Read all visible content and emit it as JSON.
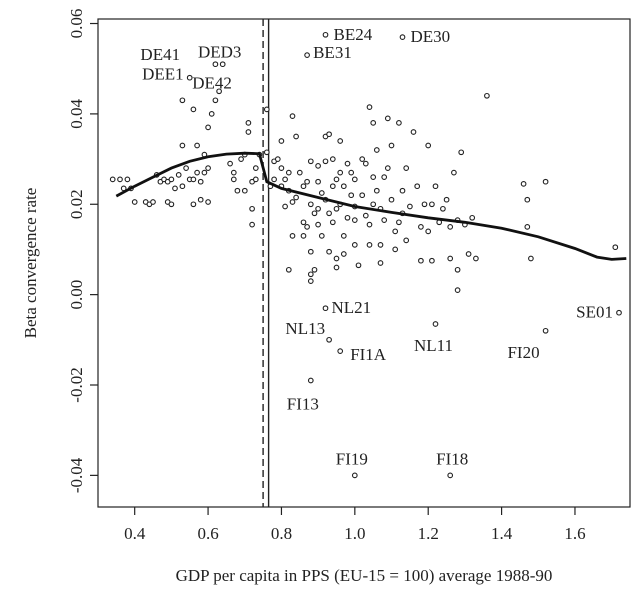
{
  "chart_data": {
    "type": "scatter",
    "xlabel": "GDP per capita in PPS (EU-15 = 100) average 1988-90",
    "ylabel": "Beta convergence rate",
    "xlim": [
      0.3,
      1.75
    ],
    "ylim": [
      -0.047,
      0.061
    ],
    "x_ticks": [
      0.4,
      0.6,
      0.8,
      1.0,
      1.2,
      1.4,
      1.6
    ],
    "x_tick_labels": [
      "0.4",
      "0.6",
      "0.8",
      "1.0",
      "1.2",
      "1.4",
      "1.6"
    ],
    "y_ticks": [
      -0.04,
      -0.02,
      0.0,
      0.02,
      0.04,
      0.06
    ],
    "y_tick_labels": [
      "-0.04",
      "-0.02",
      "0.00",
      "0.02",
      "0.04",
      "0.06"
    ],
    "grid": false,
    "vertical_lines": [
      {
        "x": 0.75,
        "style": "dashed"
      },
      {
        "x": 0.765,
        "style": "solid"
      }
    ],
    "smooth_curve": [
      [
        0.35,
        0.0218
      ],
      [
        0.4,
        0.024
      ],
      [
        0.45,
        0.026
      ],
      [
        0.5,
        0.028
      ],
      [
        0.55,
        0.0295
      ],
      [
        0.6,
        0.0305
      ],
      [
        0.65,
        0.0311
      ],
      [
        0.7,
        0.0313
      ],
      [
        0.74,
        0.0312
      ],
      [
        0.76,
        0.025
      ],
      [
        0.8,
        0.0235
      ],
      [
        0.9,
        0.0215
      ],
      [
        1.0,
        0.0195
      ],
      [
        1.1,
        0.0182
      ],
      [
        1.2,
        0.017
      ],
      [
        1.3,
        0.016
      ],
      [
        1.4,
        0.0147
      ],
      [
        1.5,
        0.0128
      ],
      [
        1.6,
        0.0102
      ],
      [
        1.66,
        0.0083
      ],
      [
        1.7,
        0.0078
      ],
      [
        1.74,
        0.008
      ]
    ],
    "labeled_points": [
      {
        "label": "BE24",
        "x": 0.92,
        "y": 0.0575
      },
      {
        "label": "DE30",
        "x": 1.13,
        "y": 0.057
      },
      {
        "label": "BE31",
        "x": 0.87,
        "y": 0.053
      },
      {
        "label": "DED3",
        "x": 0.64,
        "y": 0.0505
      },
      {
        "label": "DE41",
        "x": 0.54,
        "y": 0.051
      },
      {
        "label": "DEE1",
        "x": 0.55,
        "y": 0.048
      },
      {
        "label": "DE42",
        "x": 0.63,
        "y": 0.05
      },
      {
        "label": "NL21",
        "x": 0.92,
        "y": -0.003
      },
      {
        "label": "NL13",
        "x": 0.93,
        "y": -0.01
      },
      {
        "label": "FI1A",
        "x": 0.96,
        "y": -0.0125
      },
      {
        "label": "NL11",
        "x": 1.22,
        "y": -0.0065
      },
      {
        "label": "SE01",
        "x": 1.72,
        "y": -0.004
      },
      {
        "label": "FI20",
        "x": 1.52,
        "y": -0.008
      },
      {
        "label": "FI13",
        "x": 0.88,
        "y": -0.019
      },
      {
        "label": "FI19",
        "x": 1.0,
        "y": -0.04
      },
      {
        "label": "FI18",
        "x": 1.26,
        "y": -0.04
      }
    ],
    "points": [
      [
        0.34,
        0.0255
      ],
      [
        0.36,
        0.0255
      ],
      [
        0.38,
        0.0255
      ],
      [
        0.37,
        0.0235
      ],
      [
        0.39,
        0.0235
      ],
      [
        0.4,
        0.0205
      ],
      [
        0.43,
        0.0205
      ],
      [
        0.44,
        0.02
      ],
      [
        0.45,
        0.0205
      ],
      [
        0.46,
        0.0265
      ],
      [
        0.47,
        0.025
      ],
      [
        0.48,
        0.0255
      ],
      [
        0.49,
        0.025
      ],
      [
        0.5,
        0.0255
      ],
      [
        0.49,
        0.0205
      ],
      [
        0.5,
        0.02
      ],
      [
        0.51,
        0.0235
      ],
      [
        0.52,
        0.0265
      ],
      [
        0.53,
        0.024
      ],
      [
        0.53,
        0.033
      ],
      [
        0.54,
        0.028
      ],
      [
        0.55,
        0.0255
      ],
      [
        0.56,
        0.0255
      ],
      [
        0.56,
        0.02
      ],
      [
        0.57,
        0.027
      ],
      [
        0.57,
        0.033
      ],
      [
        0.58,
        0.021
      ],
      [
        0.58,
        0.025
      ],
      [
        0.59,
        0.027
      ],
      [
        0.59,
        0.031
      ],
      [
        0.6,
        0.028
      ],
      [
        0.6,
        0.0205
      ],
      [
        0.6,
        0.037
      ],
      [
        0.61,
        0.04
      ],
      [
        0.62,
        0.043
      ],
      [
        0.63,
        0.045
      ],
      [
        0.64,
        0.051
      ],
      [
        0.53,
        0.043
      ],
      [
        0.56,
        0.041
      ],
      [
        0.66,
        0.029
      ],
      [
        0.67,
        0.0255
      ],
      [
        0.67,
        0.027
      ],
      [
        0.68,
        0.023
      ],
      [
        0.69,
        0.03
      ],
      [
        0.7,
        0.031
      ],
      [
        0.7,
        0.023
      ],
      [
        0.71,
        0.038
      ],
      [
        0.71,
        0.036
      ],
      [
        0.72,
        0.025
      ],
      [
        0.72,
        0.019
      ],
      [
        0.72,
        0.0155
      ],
      [
        0.73,
        0.028
      ],
      [
        0.73,
        0.0255
      ],
      [
        0.74,
        0.031
      ],
      [
        0.76,
        0.0315
      ],
      [
        0.76,
        0.041
      ],
      [
        0.77,
        0.024
      ],
      [
        0.78,
        0.0255
      ],
      [
        0.78,
        0.0295
      ],
      [
        0.79,
        0.03
      ],
      [
        0.8,
        0.028
      ],
      [
        0.8,
        0.024
      ],
      [
        0.8,
        0.034
      ],
      [
        0.81,
        0.0255
      ],
      [
        0.81,
        0.0195
      ],
      [
        0.82,
        0.027
      ],
      [
        0.82,
        0.023
      ],
      [
        0.83,
        0.0205
      ],
      [
        0.83,
        0.013
      ],
      [
        0.82,
        0.0055
      ],
      [
        0.83,
        0.0395
      ],
      [
        0.84,
        0.035
      ],
      [
        0.84,
        0.0215
      ],
      [
        0.85,
        0.027
      ],
      [
        0.86,
        0.024
      ],
      [
        0.86,
        0.016
      ],
      [
        0.86,
        0.013
      ],
      [
        0.87,
        0.015
      ],
      [
        0.87,
        0.025
      ],
      [
        0.88,
        0.0295
      ],
      [
        0.88,
        0.02
      ],
      [
        0.88,
        0.0095
      ],
      [
        0.88,
        0.003
      ],
      [
        0.88,
        0.0045
      ],
      [
        0.89,
        0.0055
      ],
      [
        0.89,
        0.018
      ],
      [
        0.9,
        0.025
      ],
      [
        0.9,
        0.0285
      ],
      [
        0.9,
        0.019
      ],
      [
        0.9,
        0.0155
      ],
      [
        0.91,
        0.013
      ],
      [
        0.91,
        0.0225
      ],
      [
        0.92,
        0.035
      ],
      [
        0.92,
        0.0295
      ],
      [
        0.92,
        0.021
      ],
      [
        0.93,
        0.0355
      ],
      [
        0.93,
        0.018
      ],
      [
        0.93,
        0.0095
      ],
      [
        0.94,
        0.03
      ],
      [
        0.94,
        0.024
      ],
      [
        0.94,
        0.016
      ],
      [
        0.95,
        0.0255
      ],
      [
        0.95,
        0.019
      ],
      [
        0.95,
        0.008
      ],
      [
        0.95,
        0.006
      ],
      [
        0.96,
        0.034
      ],
      [
        0.96,
        0.027
      ],
      [
        0.96,
        0.02
      ],
      [
        0.97,
        0.024
      ],
      [
        0.97,
        0.013
      ],
      [
        0.97,
        0.009
      ],
      [
        0.98,
        0.029
      ],
      [
        0.98,
        0.017
      ],
      [
        0.99,
        0.022
      ],
      [
        0.99,
        0.027
      ],
      [
        1.0,
        0.0255
      ],
      [
        1.0,
        0.0195
      ],
      [
        1.0,
        0.0165
      ],
      [
        1.0,
        0.011
      ],
      [
        1.01,
        0.0065
      ],
      [
        1.02,
        0.03
      ],
      [
        1.02,
        0.022
      ],
      [
        1.03,
        0.029
      ],
      [
        1.03,
        0.0175
      ],
      [
        1.04,
        0.0155
      ],
      [
        1.04,
        0.011
      ],
      [
        1.04,
        0.0415
      ],
      [
        1.05,
        0.038
      ],
      [
        1.05,
        0.026
      ],
      [
        1.05,
        0.02
      ],
      [
        1.06,
        0.032
      ],
      [
        1.06,
        0.023
      ],
      [
        1.07,
        0.019
      ],
      [
        1.07,
        0.011
      ],
      [
        1.07,
        0.007
      ],
      [
        1.08,
        0.026
      ],
      [
        1.08,
        0.0165
      ],
      [
        1.09,
        0.039
      ],
      [
        1.09,
        0.028
      ],
      [
        1.1,
        0.033
      ],
      [
        1.1,
        0.021
      ],
      [
        1.11,
        0.014
      ],
      [
        1.11,
        0.01
      ],
      [
        1.12,
        0.016
      ],
      [
        1.12,
        0.038
      ],
      [
        1.13,
        0.023
      ],
      [
        1.13,
        0.018
      ],
      [
        1.14,
        0.028
      ],
      [
        1.14,
        0.012
      ],
      [
        1.15,
        0.0195
      ],
      [
        1.16,
        0.036
      ],
      [
        1.17,
        0.024
      ],
      [
        1.18,
        0.015
      ],
      [
        1.18,
        0.0075
      ],
      [
        1.19,
        0.02
      ],
      [
        1.2,
        0.033
      ],
      [
        1.2,
        0.014
      ],
      [
        1.21,
        0.02
      ],
      [
        1.21,
        0.0075
      ],
      [
        1.22,
        0.024
      ],
      [
        1.23,
        0.016
      ],
      [
        1.24,
        0.019
      ],
      [
        1.25,
        0.021
      ],
      [
        1.26,
        0.015
      ],
      [
        1.26,
        0.008
      ],
      [
        1.27,
        0.027
      ],
      [
        1.28,
        0.0165
      ],
      [
        1.28,
        0.0055
      ],
      [
        1.28,
        0.001
      ],
      [
        1.29,
        0.0315
      ],
      [
        1.3,
        0.0155
      ],
      [
        1.31,
        0.009
      ],
      [
        1.32,
        0.017
      ],
      [
        1.33,
        0.008
      ],
      [
        1.36,
        0.044
      ],
      [
        1.46,
        0.0245
      ],
      [
        1.47,
        0.021
      ],
      [
        1.47,
        0.015
      ],
      [
        1.48,
        0.008
      ],
      [
        1.52,
        0.025
      ],
      [
        1.71,
        0.0105
      ],
      [
        0.62,
        0.051
      ],
      [
        0.87,
        0.053
      ],
      [
        0.92,
        0.0575
      ],
      [
        1.13,
        0.057
      ],
      [
        0.55,
        0.048
      ],
      [
        0.92,
        -0.003
      ],
      [
        0.93,
        -0.01
      ],
      [
        0.96,
        -0.0125
      ],
      [
        1.22,
        -0.0065
      ],
      [
        1.72,
        -0.004
      ],
      [
        1.52,
        -0.008
      ],
      [
        0.88,
        -0.019
      ],
      [
        1.0,
        -0.04
      ],
      [
        1.26,
        -0.04
      ]
    ]
  }
}
